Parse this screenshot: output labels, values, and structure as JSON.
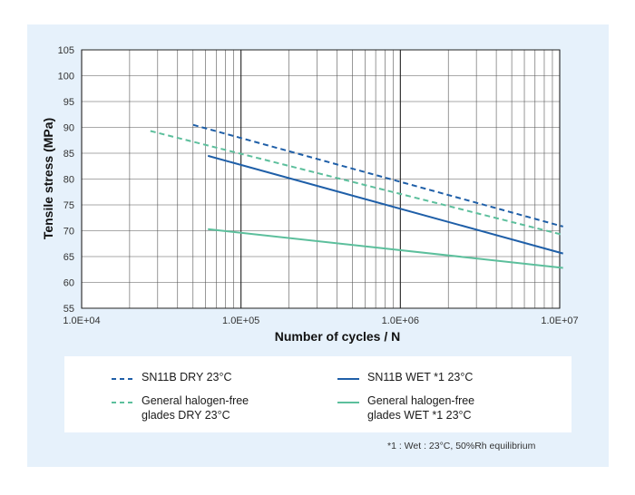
{
  "chart_data": {
    "type": "line",
    "xscale": "log",
    "xlabel": "Number of cycles / N",
    "ylabel": "Tensile stress (MPa)",
    "xlim": [
      10000,
      10000000
    ],
    "ylim": [
      55,
      105
    ],
    "x_tick_labels": [
      "1.0E+04",
      "1.0E+05",
      "1.0E+06",
      "1.0E+07"
    ],
    "y_tick_labels": [
      "55",
      "60",
      "65",
      "70",
      "75",
      "80",
      "85",
      "90",
      "95",
      "100",
      "105"
    ],
    "grid": true,
    "legend_position": "below",
    "series": [
      {
        "name": "SN11B DRY 23°C",
        "style": "dashed",
        "color": "#1f5fa8",
        "x": [
          50000,
          10500000
        ],
        "y": [
          90.5,
          70.8
        ]
      },
      {
        "name": "SN11B WET *1 23°C",
        "style": "solid",
        "color": "#1f5fa8",
        "x": [
          62000,
          10500000
        ],
        "y": [
          84.5,
          65.6
        ]
      },
      {
        "name": "General halogen-free\nglades DRY 23°C",
        "style": "dashed",
        "color": "#5cbf9c",
        "x": [
          27000,
          10500000
        ],
        "y": [
          89.3,
          69.2
        ]
      },
      {
        "name": "General halogen-free\nglades WET *1 23°C",
        "style": "solid",
        "color": "#5cbf9c",
        "x": [
          62000,
          10500000
        ],
        "y": [
          70.3,
          62.8
        ]
      }
    ]
  },
  "legend": {
    "items": [
      {
        "label": "SN11B DRY 23°C",
        "color": "#1f5fa8",
        "style": "dashed"
      },
      {
        "label": "SN11B WET *1 23°C",
        "color": "#1f5fa8",
        "style": "solid"
      },
      {
        "label": "General halogen-free\nglades DRY 23°C",
        "color": "#5cbf9c",
        "style": "dashed"
      },
      {
        "label": "General halogen-free\nglades WET *1 23°C",
        "color": "#5cbf9c",
        "style": "solid"
      }
    ]
  },
  "footnote": "*1 :  Wet : 23°C, 50%Rh equilibrium"
}
